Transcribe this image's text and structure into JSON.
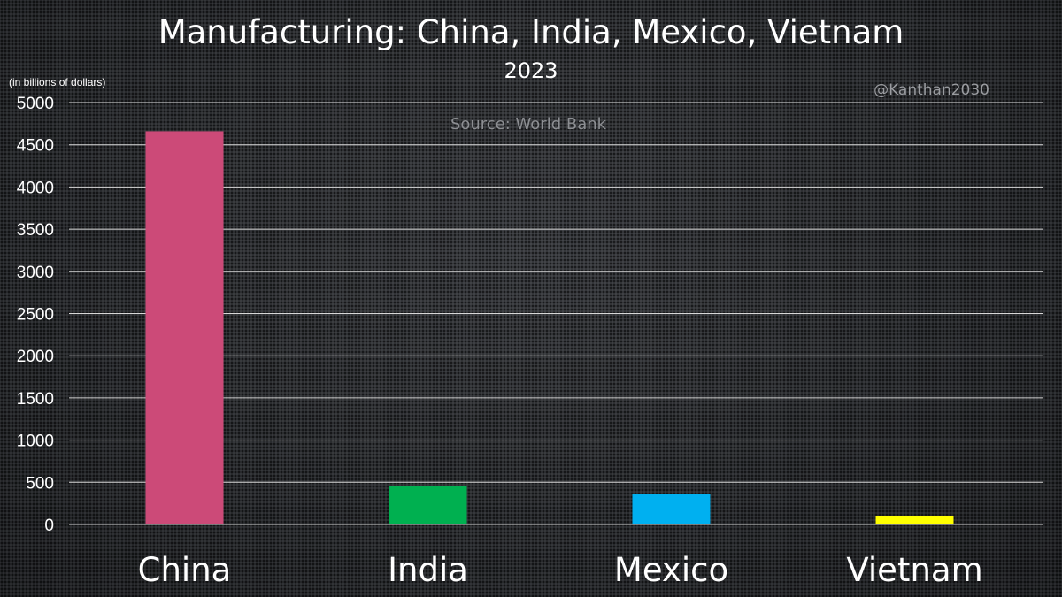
{
  "chart_data": {
    "type": "bar",
    "title": "Manufacturing: China, India, Mexico, Vietnam",
    "subtitle": "2023",
    "unit_label": "(in billions of dollars)",
    "handle": "@Kanthan2030",
    "source": "Source: World Bank",
    "categories": [
      "China",
      "India",
      "Mexico",
      "Vietnam"
    ],
    "values": [
      4660,
      455,
      365,
      105
    ],
    "colors": [
      "#cc4a78",
      "#00b050",
      "#00b0f0",
      "#ffff00"
    ],
    "ylim": [
      0,
      5000
    ],
    "yticks": [
      "0",
      "500",
      "1000",
      "1500",
      "2000",
      "2500",
      "3000",
      "3500",
      "4000",
      "4500",
      "5000"
    ],
    "grid": true,
    "legend": "none"
  }
}
